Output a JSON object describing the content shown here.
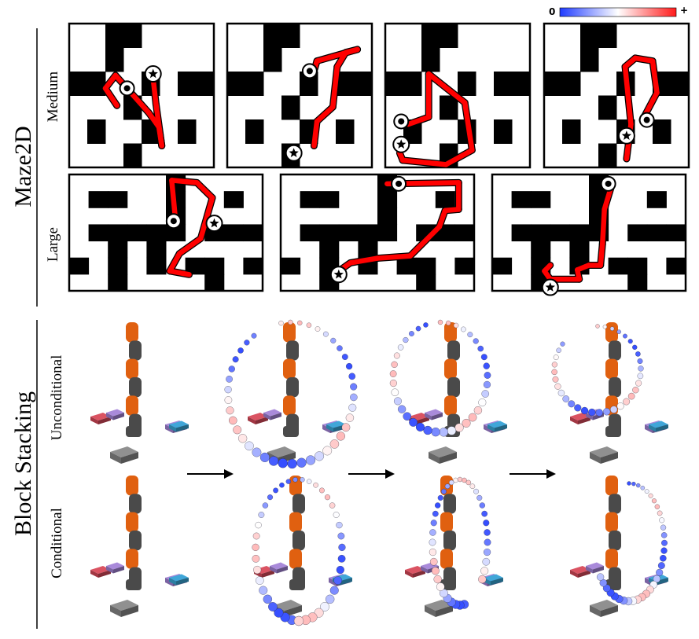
{
  "figure": {
    "colorbar": {
      "low_label": "0",
      "high_label": "+",
      "low_color": "#1f3bff",
      "mid_color": "#ffffff",
      "high_color": "#ff1a1a"
    },
    "maze2d": {
      "section_label": "Maze2D",
      "rows": [
        {
          "label": "Medium",
          "panels": 4
        },
        {
          "label": "Large",
          "panels": 3
        }
      ],
      "start_marker": "circle-dot-icon",
      "goal_marker": "star-in-circle-icon"
    },
    "block_stacking": {
      "section_label": "Block Stacking",
      "rows": [
        {
          "label": "Unconditional",
          "frames": 4
        },
        {
          "label": "Conditional",
          "frames": 4
        }
      ],
      "arrow_icon": "right-arrow-icon",
      "colors": {
        "robot_orange": "#e06010",
        "robot_gray": "#4a4a4a",
        "block_gray": "#8a8a8a",
        "block_blue": "#3aa8d8",
        "block_red": "#d84a5a",
        "block_purple": "#a484d8"
      }
    }
  }
}
